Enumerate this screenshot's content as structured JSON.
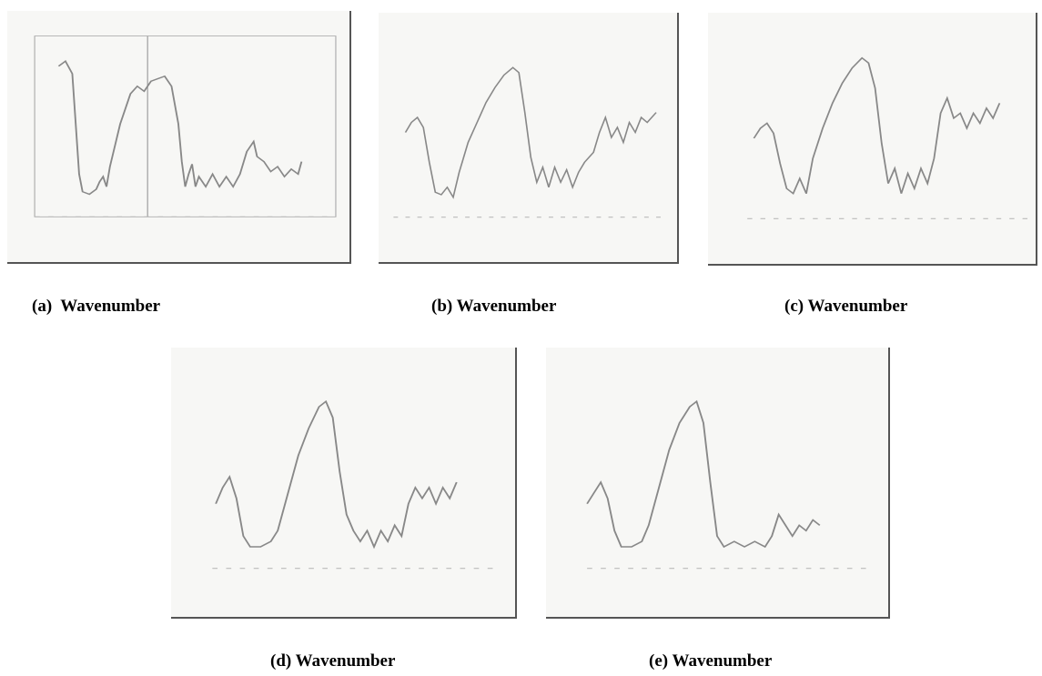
{
  "figures": [
    {
      "caption": "(a)  Wavenumber"
    },
    {
      "caption": "(b) Wavenumber"
    },
    {
      "caption": "(c) Wavenumber"
    },
    {
      "caption": "(d) Wavenumber"
    },
    {
      "caption": "(e) Wavenumber"
    }
  ]
}
